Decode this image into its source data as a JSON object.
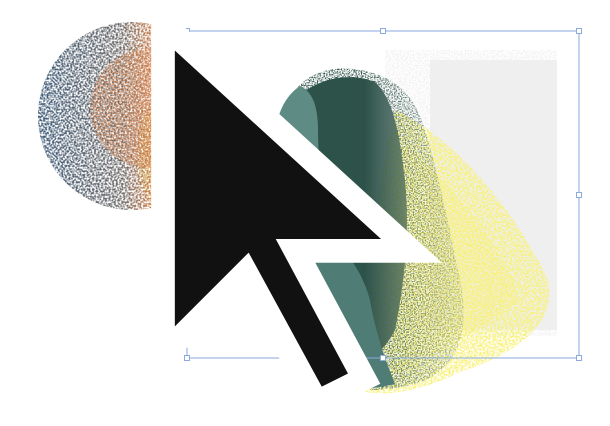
{
  "canvas": {
    "background": "#ffffff"
  },
  "colors": {
    "moon_orange": "#d8844f",
    "moon_blue": "#3c5a78",
    "glow_yellow": "#f8f178",
    "hair_teal_dark": "#2d5249",
    "face_teal": "#5e8c85",
    "backdrop_grey": "#efefef",
    "selection_blue": "#8aaae0"
  },
  "icons": {
    "cursor": "arrow-pointer-icon"
  }
}
